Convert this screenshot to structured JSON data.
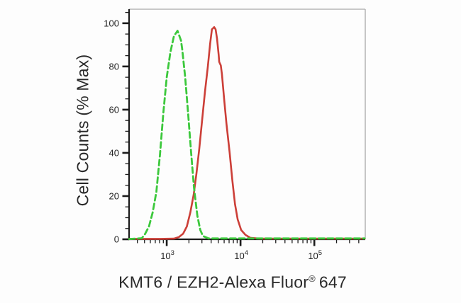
{
  "figure": {
    "background": "#fdfdfd",
    "axis_color": "#1b1b1b",
    "frame_color": "#a8a8a8",
    "tick_label_color": "#222222"
  },
  "chart_data": {
    "type": "line",
    "title": "",
    "subtitle": "",
    "xlabel": {
      "text": "KMT6 / EZH2-Alexa Fluor",
      "registered_mark": "®",
      "suffix": "647"
    },
    "ylabel": "Cell Counts (% Max)",
    "grid": false,
    "legend": "none",
    "x_axis": {
      "scale": "log10",
      "range_log10": [
        2.49,
        5.69
      ],
      "major_ticks": [
        {
          "base": "10",
          "exponent": "3",
          "log10": 3
        },
        {
          "base": "10",
          "exponent": "4",
          "log10": 4
        },
        {
          "base": "10",
          "exponent": "5",
          "log10": 5
        }
      ],
      "minor_mantissas": [
        2,
        3,
        4,
        5,
        6,
        7,
        8,
        9
      ]
    },
    "y_axis": {
      "range": [
        0,
        106.5
      ],
      "major_ticks": [
        {
          "label": "0",
          "value": 0
        },
        {
          "label": "20",
          "value": 20
        },
        {
          "label": "40",
          "value": 40
        },
        {
          "label": "60",
          "value": 60
        },
        {
          "label": "80",
          "value": 80
        },
        {
          "label": "100",
          "value": 100
        }
      ],
      "minor_tick_step": 5
    },
    "series": [
      {
        "name": "red-solid-stained",
        "color": "#cc3f38",
        "style": "solid",
        "line_width": 2.6,
        "points": [
          [
            310,
            0.2
          ],
          [
            800,
            0.2
          ],
          [
            1250,
            0.3
          ],
          [
            1460,
            1
          ],
          [
            1670,
            2.6
          ],
          [
            1870,
            5.9
          ],
          [
            2090,
            12.5
          ],
          [
            2320,
            20.7
          ],
          [
            2530,
            30.5
          ],
          [
            2760,
            42
          ],
          [
            3020,
            55.2
          ],
          [
            3300,
            68.3
          ],
          [
            3600,
            79.8
          ],
          [
            3880,
            90.6
          ],
          [
            4100,
            97.2
          ],
          [
            4400,
            98.2
          ],
          [
            4600,
            97.2
          ],
          [
            4800,
            92.9
          ],
          [
            5050,
            85.4
          ],
          [
            5150,
            82.1
          ],
          [
            5400,
            80.5
          ],
          [
            5600,
            76.5
          ],
          [
            6000,
            65
          ],
          [
            6450,
            53.5
          ],
          [
            7100,
            40.4
          ],
          [
            7750,
            27.3
          ],
          [
            8400,
            16.4
          ],
          [
            9150,
            9.2
          ],
          [
            10200,
            4.3
          ],
          [
            11700,
            2
          ],
          [
            13600,
            0.7
          ],
          [
            18000,
            0.3
          ],
          [
            480000,
            0.3
          ]
        ]
      },
      {
        "name": "green-dashed-control",
        "color": "#3cc83c",
        "style": "dashed",
        "dash": [
          8,
          4.5
        ],
        "line_width": 2.8,
        "points": [
          [
            310,
            0.1
          ],
          [
            460,
            0.5
          ],
          [
            510,
            2.5
          ],
          [
            575,
            6
          ],
          [
            645,
            12.5
          ],
          [
            725,
            22
          ],
          [
            810,
            39
          ],
          [
            900,
            58.5
          ],
          [
            1000,
            75
          ],
          [
            1120,
            86.5
          ],
          [
            1250,
            94
          ],
          [
            1400,
            96.5
          ],
          [
            1560,
            92
          ],
          [
            1620,
            88
          ],
          [
            1780,
            75
          ],
          [
            1950,
            58
          ],
          [
            2140,
            40
          ],
          [
            2340,
            24
          ],
          [
            2600,
            10.8
          ],
          [
            2850,
            4.3
          ],
          [
            3100,
            1.5
          ],
          [
            3700,
            0.4
          ],
          [
            4500,
            0.4
          ],
          [
            6000,
            0.4
          ],
          [
            9000,
            0.4
          ],
          [
            15000,
            0.4
          ],
          [
            30000,
            0.4
          ],
          [
            60000,
            0.4
          ],
          [
            120000,
            0.4
          ],
          [
            250000,
            0.4
          ],
          [
            480000,
            0.4
          ]
        ]
      }
    ]
  }
}
